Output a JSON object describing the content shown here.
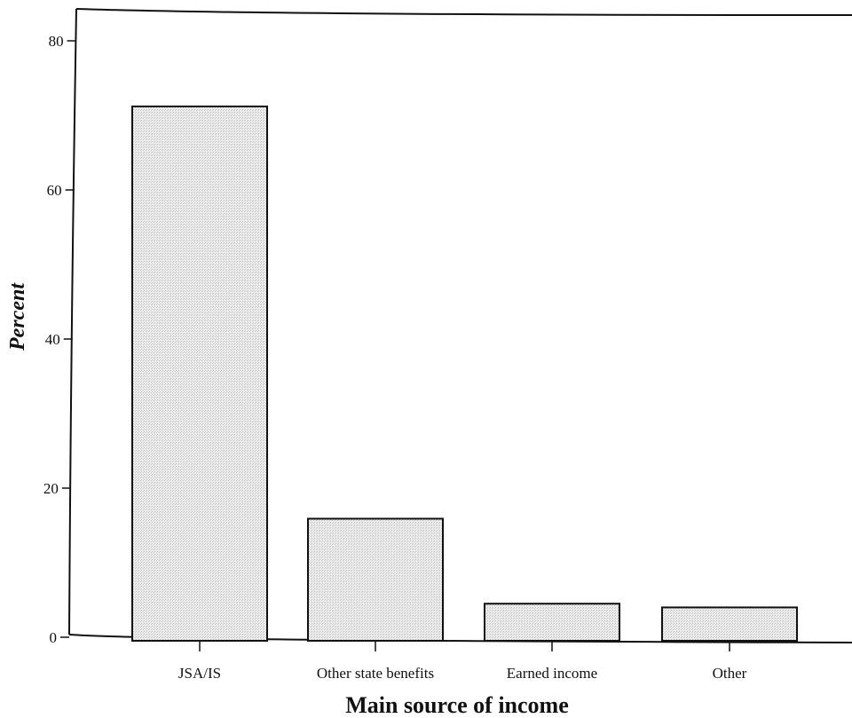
{
  "chart_data": {
    "type": "bar",
    "title": "",
    "xlabel": "Main source of income",
    "ylabel": "Percent",
    "categories": [
      "JSA/IS",
      "Other state benefits",
      "Earned income",
      "Other"
    ],
    "values": [
      71.2,
      15.9,
      4.5,
      4.0
    ],
    "ylim": [
      0,
      84
    ],
    "yticks": [
      0,
      20,
      40,
      60,
      80
    ],
    "grid": false,
    "legend": "none",
    "bar_fill": "#e4e4e4",
    "bar_stroke": "#111111"
  }
}
